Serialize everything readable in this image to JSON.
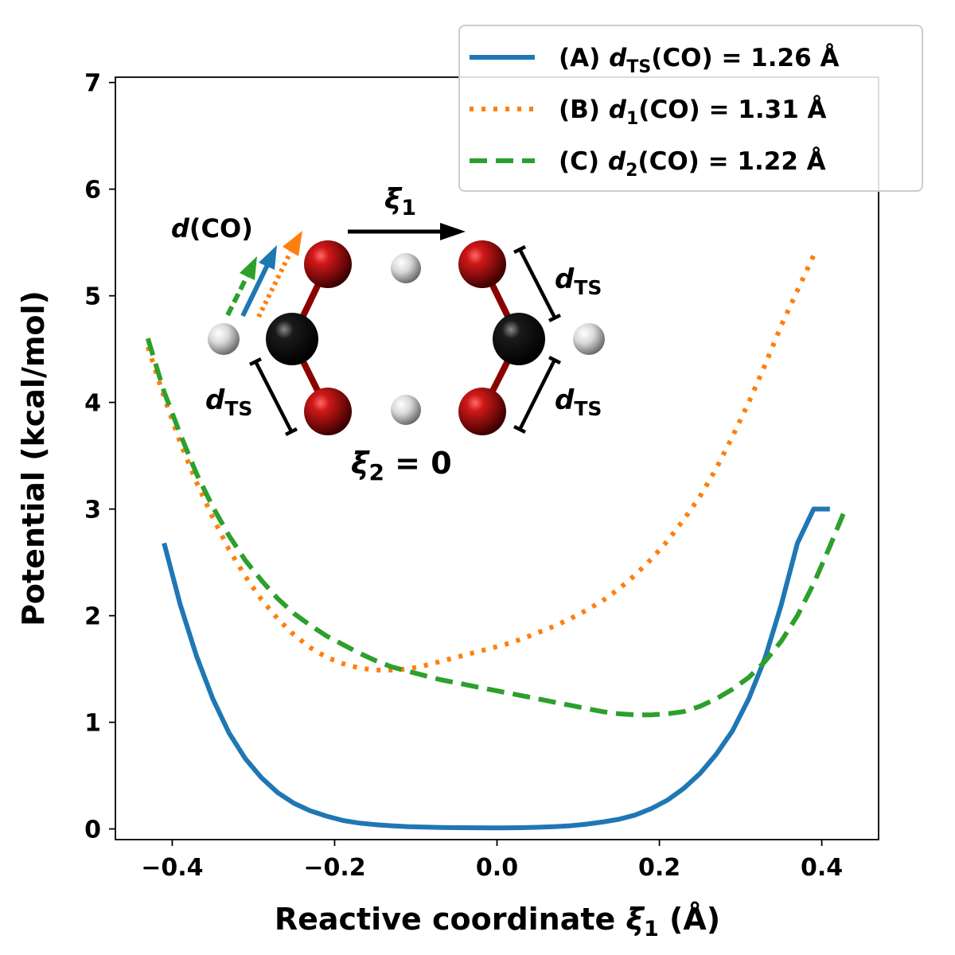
{
  "chart_data": {
    "type": "line",
    "xlabel": {
      "prefix": "Reactive coordinate ",
      "sym": "ξ",
      "sub": "1",
      "suffix": " (Å)"
    },
    "ylabel": "Potential (kcal/mol)",
    "xlim": [
      -0.47,
      0.47
    ],
    "ylim": [
      -0.1,
      7.05
    ],
    "xticks": [
      -0.4,
      -0.2,
      0.0,
      0.2,
      0.4
    ],
    "xtick_labels": [
      "−0.4",
      "−0.2",
      "0.0",
      "0.2",
      "0.4"
    ],
    "yticks": [
      0,
      1,
      2,
      3,
      4,
      5,
      6,
      7
    ],
    "ytick_labels": [
      "0",
      "1",
      "2",
      "3",
      "4",
      "5",
      "6",
      "7"
    ],
    "grid": false,
    "legend_position": "top-right",
    "series": [
      {
        "name": "(A) dTS(CO) = 1.26 Å",
        "legend": {
          "pre": "(A) ",
          "var": "d",
          "sub": "TS",
          "post": "(CO) = 1.26 Å"
        },
        "color": "#1f77b4",
        "style": "solid",
        "x": [
          -0.41,
          -0.39,
          -0.37,
          -0.35,
          -0.33,
          -0.31,
          -0.29,
          -0.27,
          -0.25,
          -0.23,
          -0.21,
          -0.19,
          -0.17,
          -0.15,
          -0.13,
          -0.11,
          -0.09,
          -0.07,
          -0.05,
          -0.03,
          -0.01,
          0.01,
          0.03,
          0.05,
          0.07,
          0.09,
          0.11,
          0.13,
          0.15,
          0.17,
          0.19,
          0.21,
          0.23,
          0.25,
          0.27,
          0.29,
          0.31,
          0.33,
          0.35,
          0.37,
          0.39,
          0.41
        ],
        "y": [
          2.68,
          2.1,
          1.62,
          1.22,
          0.9,
          0.66,
          0.48,
          0.34,
          0.24,
          0.17,
          0.12,
          0.08,
          0.055,
          0.04,
          0.03,
          0.022,
          0.017,
          0.014,
          0.012,
          0.011,
          0.01,
          0.01,
          0.012,
          0.016,
          0.022,
          0.03,
          0.045,
          0.065,
          0.09,
          0.13,
          0.19,
          0.27,
          0.38,
          0.52,
          0.7,
          0.92,
          1.22,
          1.6,
          2.1,
          2.68,
          3.0,
          3.0
        ]
      },
      {
        "name": "(B) d1(CO) = 1.31 Å",
        "legend": {
          "pre": "(B) ",
          "var": "d",
          "sub": "1",
          "post": "(CO) = 1.31 Å"
        },
        "color": "#ff7f0e",
        "style": "dotted",
        "x": [
          -0.43,
          -0.41,
          -0.39,
          -0.37,
          -0.35,
          -0.33,
          -0.31,
          -0.29,
          -0.27,
          -0.25,
          -0.23,
          -0.21,
          -0.19,
          -0.17,
          -0.15,
          -0.13,
          -0.11,
          -0.09,
          -0.07,
          -0.05,
          -0.03,
          -0.01,
          0.01,
          0.03,
          0.05,
          0.07,
          0.09,
          0.11,
          0.13,
          0.15,
          0.17,
          0.19,
          0.21,
          0.23,
          0.25,
          0.27,
          0.29,
          0.31,
          0.33,
          0.35,
          0.37,
          0.39
        ],
        "y": [
          4.52,
          4.05,
          3.62,
          3.25,
          2.92,
          2.62,
          2.37,
          2.15,
          1.97,
          1.82,
          1.7,
          1.61,
          1.55,
          1.51,
          1.49,
          1.49,
          1.5,
          1.53,
          1.57,
          1.61,
          1.65,
          1.69,
          1.73,
          1.78,
          1.84,
          1.9,
          1.97,
          2.05,
          2.14,
          2.25,
          2.38,
          2.53,
          2.7,
          2.9,
          3.12,
          3.38,
          3.68,
          4.0,
          4.35,
          4.72,
          5.05,
          5.38
        ]
      },
      {
        "name": "(C) d2(CO) = 1.22 Å",
        "legend": {
          "pre": "(C) ",
          "var": "d",
          "sub": "2",
          "post": "(CO) = 1.22 Å"
        },
        "color": "#2ca02c",
        "style": "dashed",
        "x": [
          -0.43,
          -0.41,
          -0.39,
          -0.37,
          -0.35,
          -0.33,
          -0.31,
          -0.29,
          -0.27,
          -0.25,
          -0.23,
          -0.21,
          -0.19,
          -0.17,
          -0.15,
          -0.13,
          -0.11,
          -0.09,
          -0.07,
          -0.05,
          -0.03,
          -0.01,
          0.01,
          0.03,
          0.05,
          0.07,
          0.09,
          0.11,
          0.13,
          0.15,
          0.17,
          0.19,
          0.21,
          0.23,
          0.25,
          0.27,
          0.29,
          0.31,
          0.33,
          0.35,
          0.37,
          0.39,
          0.41,
          0.43
        ],
        "y": [
          4.6,
          4.1,
          3.7,
          3.33,
          3.02,
          2.75,
          2.52,
          2.33,
          2.16,
          2.02,
          1.91,
          1.81,
          1.73,
          1.65,
          1.58,
          1.52,
          1.48,
          1.44,
          1.4,
          1.37,
          1.34,
          1.31,
          1.28,
          1.25,
          1.22,
          1.19,
          1.16,
          1.13,
          1.1,
          1.08,
          1.07,
          1.07,
          1.08,
          1.1,
          1.15,
          1.22,
          1.31,
          1.42,
          1.57,
          1.76,
          2.0,
          2.3,
          2.65,
          3.02
        ]
      }
    ],
    "inset": {
      "d_co": {
        "var": "d",
        "post": "(CO)"
      },
      "xi1": {
        "sym": "ξ",
        "sub": "1"
      },
      "xi2": {
        "sym": "ξ",
        "sub": "2",
        "post": " = 0"
      },
      "dts": {
        "var": "d",
        "sub": "TS"
      }
    }
  }
}
